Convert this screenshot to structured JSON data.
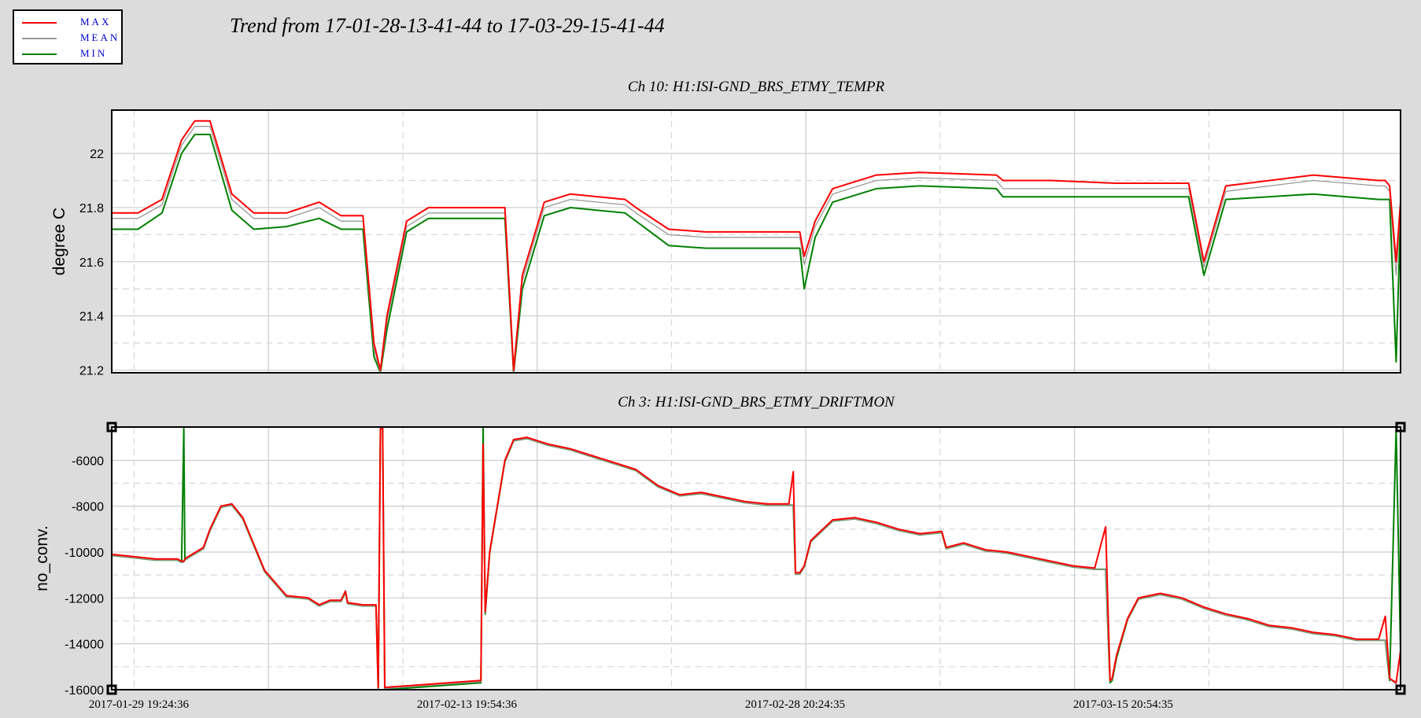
{
  "title": "Trend from 17-01-28-13-41-44 to 17-03-29-15-41-44",
  "legend": [
    {
      "label": "MAX",
      "color": "#ff0000"
    },
    {
      "label": "MEAN",
      "color": "#999999"
    },
    {
      "label": "MIN",
      "color": "#008000"
    }
  ],
  "chart_data": [
    {
      "type": "line",
      "title": "Ch 10: H1:ISI-GND_BRS_ETMY_TEMPR",
      "ylabel": "degree C",
      "xlabel": "",
      "ylim": [
        21.19,
        22.16
      ],
      "yticks": [
        "21.2",
        "21.4",
        "21.6",
        "21.8",
        "22"
      ],
      "ytick_values": [
        21.2,
        21.4,
        21.6,
        21.8,
        22.0
      ],
      "xlim": [
        0,
        59
      ],
      "grid": true,
      "x_unit": "days since 17-01-28-13-41-44",
      "x": [
        0,
        1.2,
        2.3,
        3.2,
        3.8,
        4.5,
        5.5,
        6.5,
        8,
        9.5,
        10.5,
        11.5,
        12.0,
        12.3,
        12.6,
        13.5,
        14.5,
        17.5,
        18.0,
        18.4,
        18.8,
        19.8,
        21,
        23.5,
        24,
        25.5,
        27.2,
        29.2,
        31.5,
        31.7,
        32.2,
        33,
        35,
        37,
        40.5,
        40.8,
        41,
        41.5,
        42,
        43,
        46,
        47,
        48,
        49,
        49.3,
        50,
        51,
        55,
        58,
        58.3,
        58.5,
        58.8,
        59
      ],
      "series": [
        {
          "name": "MAX",
          "values": [
            21.78,
            21.78,
            21.83,
            22.05,
            22.12,
            22.12,
            21.85,
            21.78,
            21.78,
            21.82,
            21.77,
            21.77,
            21.3,
            21.2,
            21.4,
            21.75,
            21.8,
            21.8,
            21.8,
            21.2,
            21.55,
            21.82,
            21.85,
            21.83,
            21.8,
            21.72,
            21.71,
            21.71,
            21.71,
            21.62,
            21.75,
            21.87,
            21.92,
            21.93,
            21.92,
            21.9,
            21.9,
            21.9,
            21.9,
            21.9,
            21.89,
            21.89,
            21.89,
            21.89,
            21.89,
            21.6,
            21.88,
            21.92,
            21.9,
            21.9,
            21.88,
            21.6,
            21.82
          ]
        },
        {
          "name": "MEAN",
          "values": [
            21.76,
            21.76,
            21.81,
            22.03,
            22.1,
            22.1,
            21.83,
            21.76,
            21.76,
            21.8,
            21.75,
            21.75,
            21.28,
            21.19,
            21.38,
            21.73,
            21.78,
            21.78,
            21.78,
            21.19,
            21.53,
            21.8,
            21.83,
            21.81,
            21.78,
            21.7,
            21.69,
            21.69,
            21.69,
            21.59,
            21.73,
            21.85,
            21.9,
            21.91,
            21.9,
            21.87,
            21.87,
            21.87,
            21.87,
            21.87,
            21.87,
            21.87,
            21.87,
            21.87,
            21.87,
            21.58,
            21.86,
            21.9,
            21.88,
            21.88,
            21.86,
            21.55,
            21.8
          ]
        },
        {
          "name": "MIN",
          "values": [
            21.72,
            21.72,
            21.78,
            22.0,
            22.07,
            22.07,
            21.79,
            21.72,
            21.73,
            21.76,
            21.72,
            21.72,
            21.25,
            21.19,
            21.35,
            21.71,
            21.76,
            21.76,
            21.76,
            21.19,
            21.5,
            21.77,
            21.8,
            21.78,
            21.75,
            21.66,
            21.65,
            21.65,
            21.65,
            21.5,
            21.69,
            21.82,
            21.87,
            21.88,
            21.87,
            21.84,
            21.84,
            21.84,
            21.84,
            21.84,
            21.84,
            21.84,
            21.84,
            21.84,
            21.84,
            21.55,
            21.83,
            21.85,
            21.83,
            21.83,
            21.83,
            21.23,
            21.78
          ]
        }
      ]
    },
    {
      "type": "line",
      "title": "Ch 3: H1:ISI-GND_BRS_ETMY_DRIFTMON",
      "ylabel": "no_conv.",
      "xlabel": "",
      "ylim": [
        -16000,
        -4550
      ],
      "yticks": [
        "-16000",
        "-14000",
        "-12000",
        "-10000",
        "-8000",
        "-6000"
      ],
      "ytick_values": [
        -16000,
        -14000,
        -12000,
        -10000,
        -8000,
        -6000
      ],
      "xlim": [
        0,
        59
      ],
      "grid": true,
      "xticks": [
        "2017-01-29 19:24:36",
        "2017-02-13 19:54:36",
        "2017-02-28 20:24:35",
        "2017-03-15 20:54:35"
      ],
      "xtick_values": [
        1.24,
        16.26,
        31.28,
        46.3
      ],
      "x_unit": "days since 17-01-28-13-41-44",
      "x": [
        0,
        1,
        2,
        3,
        3.2,
        3.3,
        3.35,
        3.5,
        4.2,
        4.5,
        5,
        5.5,
        6,
        7,
        8,
        9,
        9.5,
        10,
        10.5,
        10.7,
        10.8,
        11.5,
        12.1,
        12.2,
        12.3,
        12.4,
        12.5,
        16.9,
        17.0,
        17.1,
        17.3,
        18,
        18.4,
        19,
        20,
        21,
        22,
        23,
        24,
        25,
        26,
        27,
        28,
        29,
        30,
        31,
        31.2,
        31.3,
        31.5,
        31.7,
        32,
        33,
        34,
        35,
        36,
        37,
        38,
        38.2,
        39,
        40,
        41,
        42,
        43,
        44,
        45,
        45.5,
        45.7,
        45.8,
        46,
        46.5,
        47,
        48,
        49,
        50,
        51,
        52,
        53,
        54,
        55,
        56,
        57,
        58,
        58.3,
        58.5,
        58.8,
        59
      ],
      "series": [
        {
          "name": "MAX",
          "values": [
            -10100,
            -10200,
            -10300,
            -10300,
            -10400,
            -10400,
            -10300,
            -10200,
            -9800,
            -9000,
            -8000,
            -7900,
            -8500,
            -10800,
            -11900,
            -12000,
            -12300,
            -12100,
            -12100,
            -11700,
            -12200,
            -12300,
            -12300,
            -15900,
            -4600,
            -4600,
            -15900,
            -15600,
            -5300,
            -12600,
            -10000,
            -6000,
            -5100,
            -5000,
            -5300,
            -5500,
            -5800,
            -6100,
            -6400,
            -7100,
            -7500,
            -7400,
            -7600,
            -7800,
            -7900,
            -7900,
            -6500,
            -10900,
            -10900,
            -10600,
            -9500,
            -8600,
            -8500,
            -8700,
            -9000,
            -9200,
            -9100,
            -9800,
            -9600,
            -9900,
            -10000,
            -10200,
            -10400,
            -10600,
            -10700,
            -8900,
            -15600,
            -15500,
            -14500,
            -12900,
            -12000,
            -11800,
            -12000,
            -12400,
            -12700,
            -12900,
            -13200,
            -13300,
            -13500,
            -13600,
            -13800,
            -13800,
            -12800,
            -15500,
            -15700,
            -14300
          ]
        },
        {
          "name": "MEAN",
          "values": [
            -10150,
            -10250,
            -10350,
            -10350,
            -10450,
            -10450,
            -10350,
            -10250,
            -9850,
            -9050,
            -8050,
            -7950,
            -8550,
            -10850,
            -11950,
            -12050,
            -12350,
            -12150,
            -12150,
            -11750,
            -12250,
            -12350,
            -12350,
            -15950,
            -4650,
            -4650,
            -15950,
            -15650,
            -5350,
            -12650,
            -10050,
            -6050,
            -5150,
            -5050,
            -5350,
            -5550,
            -5850,
            -6150,
            -6450,
            -7150,
            -7550,
            -7450,
            -7650,
            -7850,
            -7950,
            -7950,
            -7950,
            -10950,
            -10950,
            -10650,
            -9550,
            -8650,
            -8550,
            -8750,
            -9050,
            -9250,
            -9150,
            -9850,
            -9650,
            -9950,
            -10050,
            -10250,
            -10450,
            -10650,
            -10750,
            -10750,
            -15650,
            -15550,
            -14550,
            -12950,
            -12050,
            -11850,
            -12050,
            -12450,
            -12750,
            -12950,
            -13250,
            -13350,
            -13550,
            -13650,
            -13850,
            -13850,
            -13850,
            -15550,
            -15750,
            -14350
          ]
        },
        {
          "name": "MIN",
          "values": [
            -10150,
            -10250,
            -10350,
            -10350,
            -10450,
            -4600,
            -10350,
            -10250,
            -9850,
            -9050,
            -8050,
            -7950,
            -8550,
            -10850,
            -11950,
            -12050,
            -12350,
            -12150,
            -12150,
            -11750,
            -12250,
            -12350,
            -12350,
            -16000,
            -4600,
            -4600,
            -16000,
            -15700,
            -4600,
            -12700,
            -10050,
            -6050,
            -5150,
            -5050,
            -5350,
            -5550,
            -5850,
            -6150,
            -6450,
            -7150,
            -7550,
            -7450,
            -7650,
            -7850,
            -7950,
            -7950,
            -7950,
            -10950,
            -10950,
            -10650,
            -9550,
            -8650,
            -8550,
            -8750,
            -9050,
            -9250,
            -9150,
            -9850,
            -9650,
            -9950,
            -10050,
            -10250,
            -10450,
            -10650,
            -10750,
            -10750,
            -15700,
            -15600,
            -14600,
            -12950,
            -12050,
            -11850,
            -12050,
            -12450,
            -12750,
            -12950,
            -13250,
            -13350,
            -13550,
            -13650,
            -13850,
            -13850,
            -13850,
            -15600,
            -4600,
            -14350
          ]
        }
      ]
    }
  ]
}
